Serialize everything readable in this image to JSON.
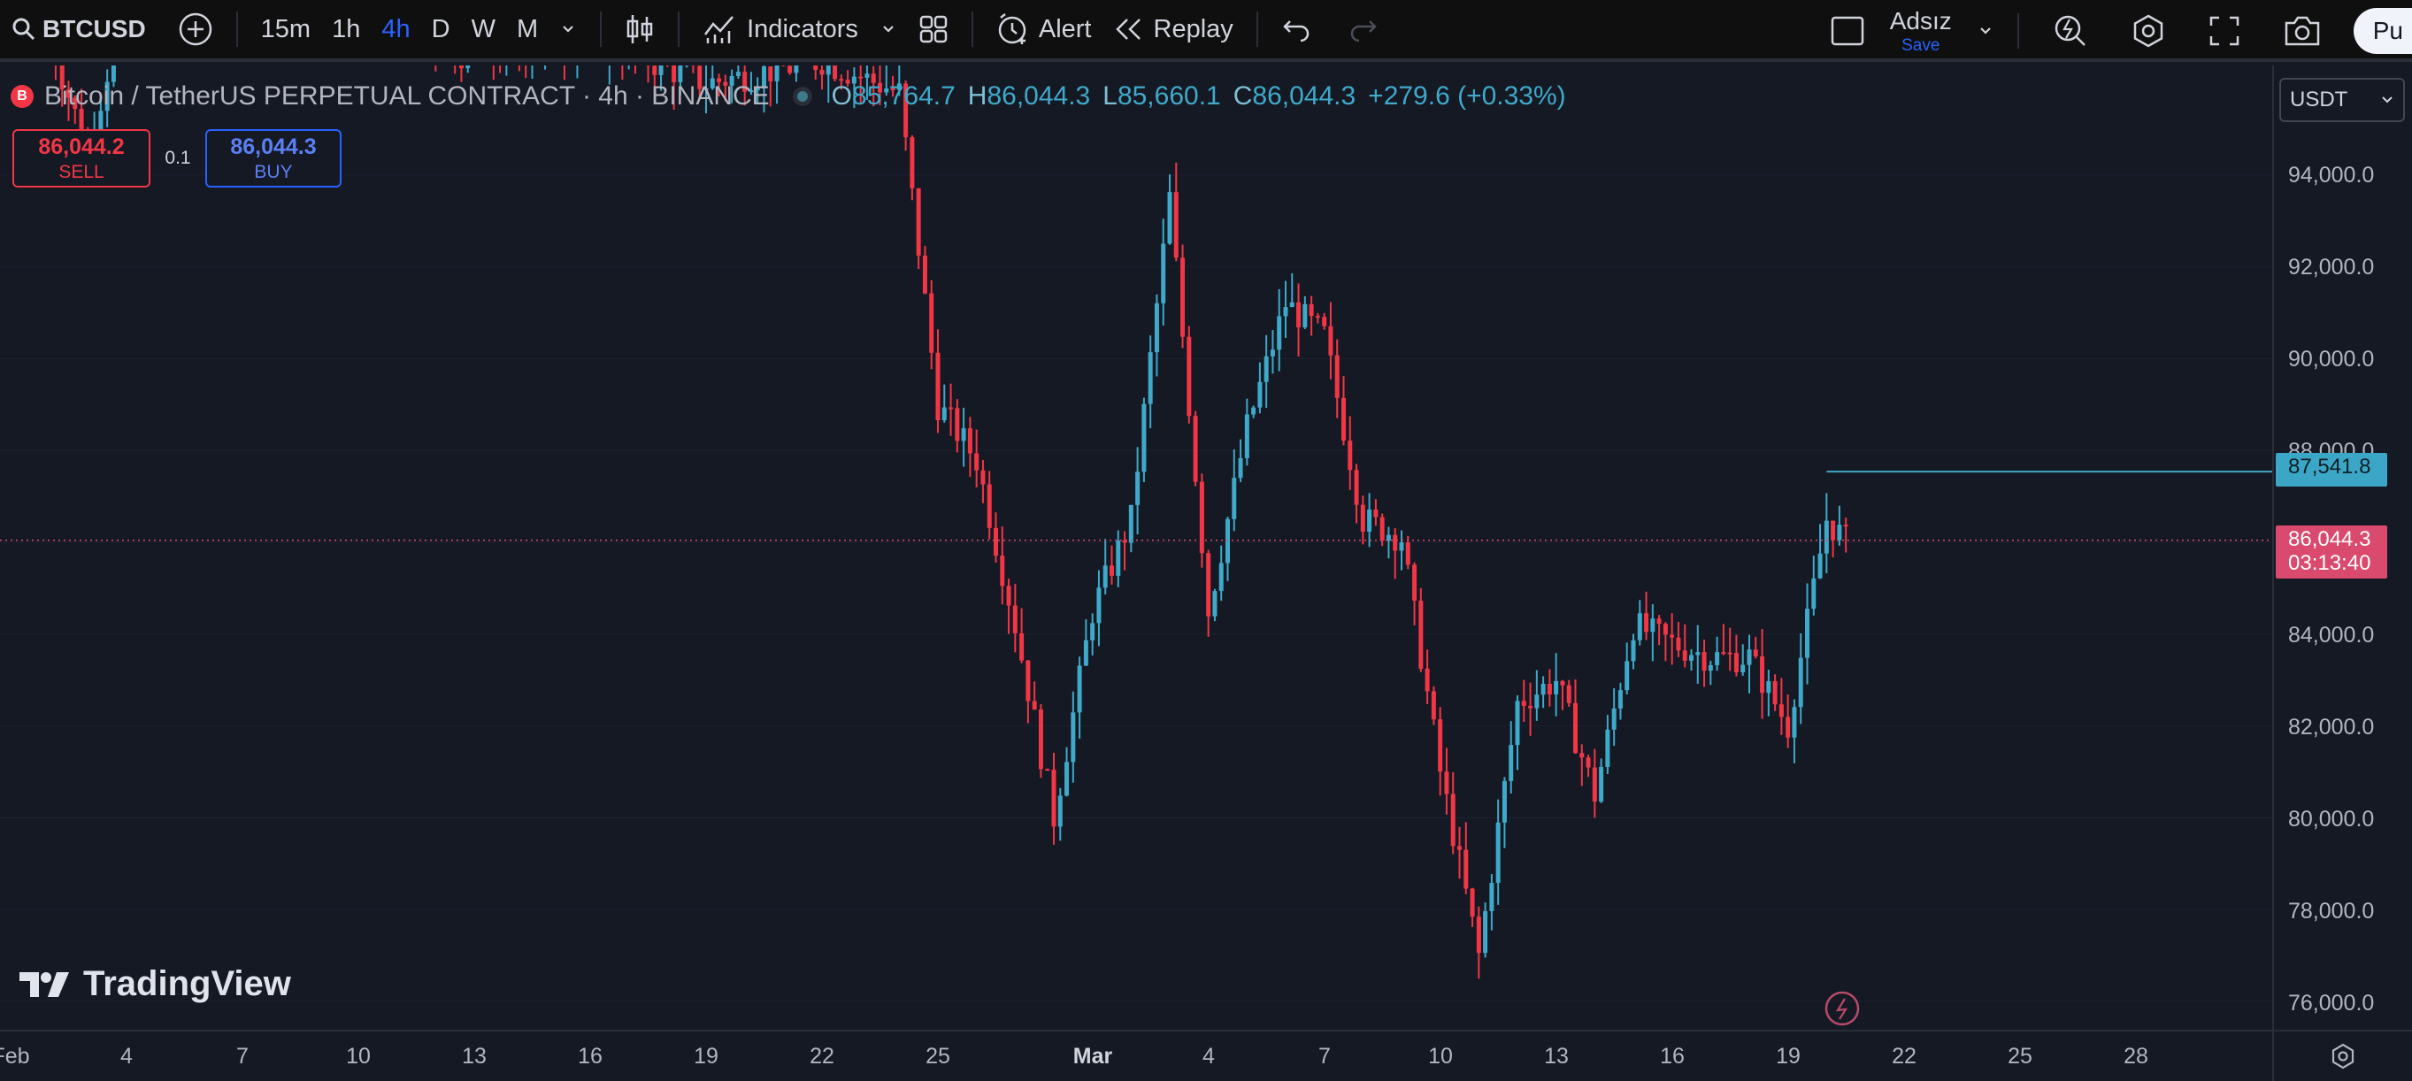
{
  "toolbar": {
    "symbol": "BTCUSD",
    "intervals": [
      {
        "label": "15m",
        "active": false
      },
      {
        "label": "1h",
        "active": false
      },
      {
        "label": "4h",
        "active": true
      },
      {
        "label": "D",
        "active": false
      },
      {
        "label": "W",
        "active": false
      },
      {
        "label": "M",
        "active": false
      }
    ],
    "indicators_label": "Indicators",
    "alert_label": "Alert",
    "replay_label": "Replay",
    "layout_title": "Adsız",
    "layout_save": "Save",
    "publish_label": "Pu",
    "icons": [
      "search-icon",
      "plus-circle-icon",
      "chevron-down-icon",
      "candles-icon",
      "indicators-icon",
      "templates-icon",
      "alert-icon",
      "replay-icon",
      "undo-icon",
      "redo-icon",
      "layout-icon",
      "lightning-icon",
      "settings-icon",
      "fullscreen-icon",
      "camera-icon"
    ]
  },
  "legend": {
    "badge": "B",
    "title": "Bitcoin / TetherUS PERPETUAL CONTRACT · 4h · BINANCE",
    "o_label": "O",
    "o": "85,764.7",
    "h_label": "H",
    "h": "86,044.3",
    "l_label": "L",
    "l": "85,660.1",
    "c_label": "C",
    "c": "86,044.3",
    "change": "+279.6 (+0.33%)"
  },
  "trade": {
    "sell_price": "86,044.2",
    "sell_label": "SELL",
    "qty": "0.1",
    "buy_price": "86,044.3",
    "buy_label": "BUY"
  },
  "watermark": "TradingView",
  "price_scale": {
    "currency": "USDT",
    "labels": [
      "94,000.0",
      "92,000.0",
      "90,000.0",
      "88,000.0",
      "84,000.0",
      "82,000.0",
      "80,000.0",
      "78,000.0",
      "76,000.0"
    ],
    "high_tag": "87,541.8",
    "last_price": "86,044.3",
    "countdown": "03:13:40"
  },
  "time_scale": {
    "labels": [
      "Feb",
      "4",
      "7",
      "10",
      "13",
      "16",
      "19",
      "22",
      "25",
      "Mar",
      "4",
      "7",
      "10",
      "13",
      "16",
      "19",
      "22",
      "25",
      "28"
    ]
  },
  "colors": {
    "up": "#26a69a",
    "up_candle": "#3fa9c9",
    "down": "#f23645",
    "background": "#151924",
    "accent": "#2962ff"
  },
  "chart_data": {
    "type": "candlestick",
    "symbol": "BTCUSDT.P",
    "exchange": "BINANCE",
    "interval": "4h",
    "ylim": [
      75500,
      96500
    ],
    "y_ticks": [
      76000,
      78000,
      80000,
      82000,
      84000,
      86000,
      88000,
      90000,
      92000,
      94000
    ],
    "last_price": 86044.3,
    "high_line": 87541.8,
    "anchors": [
      {
        "date": "Feb 2",
        "price": 97000
      },
      {
        "date": "Feb 3",
        "price": 94500
      },
      {
        "date": "Feb 4",
        "price": 98000
      },
      {
        "date": "Feb 7",
        "price": 97500
      },
      {
        "date": "Feb 10",
        "price": 97800
      },
      {
        "date": "Feb 13",
        "price": 96500
      },
      {
        "date": "Feb 16",
        "price": 97000
      },
      {
        "date": "Feb 19",
        "price": 96000
      },
      {
        "date": "Feb 22",
        "price": 96500
      },
      {
        "date": "Feb 24",
        "price": 95800
      },
      {
        "date": "Feb 25",
        "price": 89000
      },
      {
        "date": "Feb 26",
        "price": 87800
      },
      {
        "date": "Feb 27",
        "price": 84200
      },
      {
        "date": "Feb 28",
        "price": 80000
      },
      {
        "date": "Mar 1",
        "price": 84500
      },
      {
        "date": "Mar 2",
        "price": 86500
      },
      {
        "date": "Mar 3",
        "price": 93500
      },
      {
        "date": "Mar 4",
        "price": 84500
      },
      {
        "date": "Mar 5",
        "price": 88500
      },
      {
        "date": "Mar 6",
        "price": 91200
      },
      {
        "date": "Mar 7",
        "price": 90500
      },
      {
        "date": "Mar 8",
        "price": 86500
      },
      {
        "date": "Mar 9",
        "price": 86100
      },
      {
        "date": "Mar 10",
        "price": 81000
      },
      {
        "date": "Mar 11",
        "price": 77000
      },
      {
        "date": "Mar 12",
        "price": 82500
      },
      {
        "date": "Mar 13",
        "price": 83000
      },
      {
        "date": "Mar 14",
        "price": 80500
      },
      {
        "date": "Mar 15",
        "price": 84200
      },
      {
        "date": "Mar 16",
        "price": 83800
      },
      {
        "date": "Mar 17",
        "price": 83500
      },
      {
        "date": "Mar 18",
        "price": 83500
      },
      {
        "date": "Mar 19",
        "price": 82000
      },
      {
        "date": "Mar 20",
        "price": 86500
      },
      {
        "date": "Mar 20 12:00",
        "price": 86044
      }
    ]
  }
}
